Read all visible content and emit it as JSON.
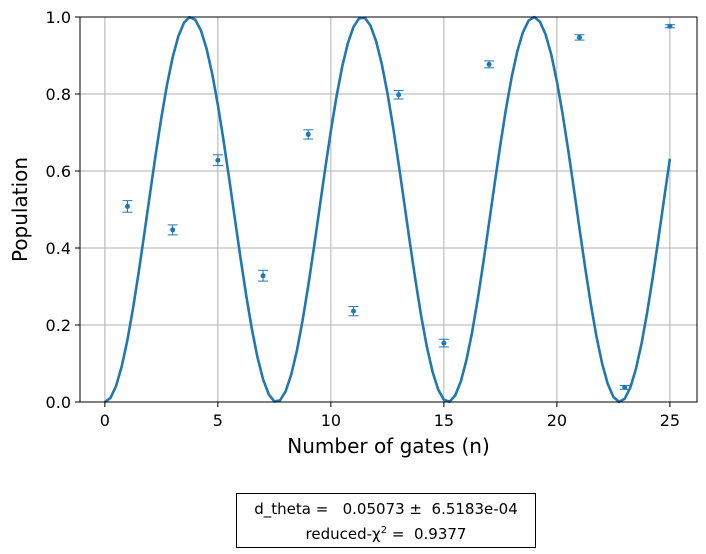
{
  "chart_data": {
    "type": "scatter",
    "xlabel": "Number of gates (n)",
    "ylabel": "Population",
    "xlim": [
      -1.1,
      26.2
    ],
    "ylim": [
      0.0,
      1.0
    ],
    "xticks": [
      0,
      5,
      10,
      15,
      20,
      25
    ],
    "yticks": [
      0.0,
      0.2,
      0.4,
      0.6,
      0.8,
      1.0
    ],
    "xtick_labels": [
      "0",
      "5",
      "10",
      "15",
      "20",
      "25"
    ],
    "ytick_labels": [
      "0.0",
      "0.2",
      "0.4",
      "0.6",
      "0.8",
      "1.0"
    ],
    "grid": true,
    "colors": {
      "fit": "#1f77b4",
      "points": "#1f77b4",
      "grid": "#b0b0b0"
    },
    "measurements": {
      "x": [
        1,
        3,
        5,
        7,
        9,
        11,
        13,
        15,
        17,
        21,
        23,
        25
      ],
      "y": [
        0.508,
        0.447,
        0.628,
        0.328,
        0.695,
        0.236,
        0.798,
        0.153,
        0.877,
        0.947,
        0.038,
        0.976
      ],
      "yerr": [
        0.015,
        0.013,
        0.014,
        0.014,
        0.012,
        0.012,
        0.011,
        0.01,
        0.009,
        0.007,
        0.005,
        0.004
      ]
    },
    "fit_curve": {
      "model": "sin^2(n * theta / 2)",
      "x_range": [
        0,
        25
      ],
      "theta_rad": 0.8275
    }
  },
  "fit_box": {
    "line1": "d_theta =   0.05073 ±  6.5183e-04",
    "line2_prefix": "reduced-χ",
    "line2_sup": "2",
    "line2_suffix": " =  0.9377"
  }
}
